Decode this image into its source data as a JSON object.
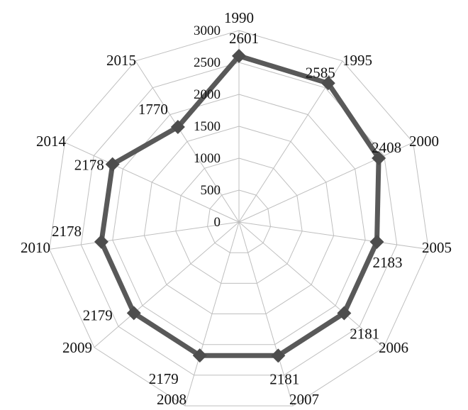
{
  "chart_data": {
    "type": "radar",
    "title": "",
    "categories": [
      "1990",
      "1995",
      "2000",
      "2005",
      "2006",
      "2007",
      "2008",
      "2009",
      "2010",
      "2014",
      "2015"
    ],
    "series": [
      {
        "values": [
          2601,
          2585,
          2408,
          2183,
          2181,
          2181,
          2179,
          2179,
          2178,
          2178,
          1770
        ]
      }
    ],
    "data_labels": [
      "2601",
      "2585",
      "2408",
      "2183",
      "2181",
      "2181",
      "2179",
      "2179",
      "2178",
      "2178",
      "1770"
    ],
    "radial_axis": {
      "min": 0,
      "max": 3000,
      "ticks": [
        0,
        500,
        1000,
        1500,
        2000,
        2500,
        3000
      ],
      "tick_labels": [
        "0",
        "500",
        "1000",
        "1500",
        "2000",
        "2500",
        "3000"
      ],
      "gridlines": true
    },
    "legend": "none",
    "colors": {
      "series_line": "#595959",
      "series_marker": "#4d4d4d",
      "gridline": "#bfbfbf"
    }
  }
}
